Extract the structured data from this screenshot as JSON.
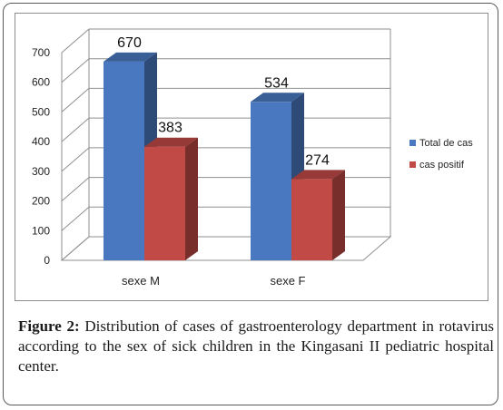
{
  "chart_data": {
    "type": "bar",
    "categories": [
      "sexe M",
      "sexe F"
    ],
    "series": [
      {
        "name": "Total de cas",
        "values": [
          670,
          534
        ],
        "color": "#4a78c0"
      },
      {
        "name": "cas positif",
        "values": [
          383,
          274
        ],
        "color": "#c24a46"
      }
    ],
    "ylim": [
      0,
      700
    ],
    "yticks": [
      0,
      100,
      200,
      300,
      400,
      500,
      600,
      700
    ],
    "grid": true,
    "legend": "right",
    "three_d": true
  },
  "caption": {
    "label": "Figure 2:",
    "text": " Distribution of cases of gastroenterology department in rotavirus according to the sex of sick children in the Kingasani II pediatric hospital center."
  }
}
